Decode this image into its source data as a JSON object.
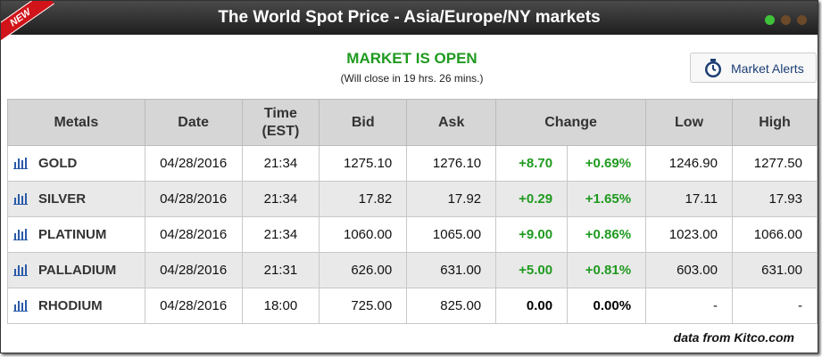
{
  "header": {
    "badge": "NEW",
    "title": "The World Spot Price - Asia/Europe/NY markets"
  },
  "status": {
    "title": "MARKET IS OPEN",
    "subtitle": "(Will close in 19 hrs. 26 mins.)"
  },
  "button": {
    "label": "Market Alerts"
  },
  "table": {
    "columns": [
      "Metals",
      "Date",
      "Time\n(EST)",
      "Bid",
      "Ask",
      "Change",
      "Low",
      "High"
    ],
    "rows": [
      {
        "metal": "GOLD",
        "date": "04/28/2016",
        "time": "21:34",
        "bid": "1275.10",
        "ask": "1276.10",
        "change": "+8.70",
        "change_pct": "+0.69%",
        "change_color": "#1f9a1f",
        "low": "1246.90",
        "high": "1277.50"
      },
      {
        "metal": "SILVER",
        "date": "04/28/2016",
        "time": "21:34",
        "bid": "17.82",
        "ask": "17.92",
        "change": "+0.29",
        "change_pct": "+1.65%",
        "change_color": "#1f9a1f",
        "low": "17.11",
        "high": "17.93"
      },
      {
        "metal": "PLATINUM",
        "date": "04/28/2016",
        "time": "21:34",
        "bid": "1060.00",
        "ask": "1065.00",
        "change": "+9.00",
        "change_pct": "+0.86%",
        "change_color": "#1f9a1f",
        "low": "1023.00",
        "high": "1066.00"
      },
      {
        "metal": "PALLADIUM",
        "date": "04/28/2016",
        "time": "21:31",
        "bid": "626.00",
        "ask": "631.00",
        "change": "+5.00",
        "change_pct": "+0.81%",
        "change_color": "#1f9a1f",
        "low": "603.00",
        "high": "631.00"
      },
      {
        "metal": "RHODIUM",
        "date": "04/28/2016",
        "time": "18:00",
        "bid": "725.00",
        "ask": "825.00",
        "change": "0.00",
        "change_pct": "0.00%",
        "change_color": "#000000",
        "low": "-",
        "high": "-"
      }
    ]
  },
  "footer": {
    "source": "data from Kitco.com"
  }
}
